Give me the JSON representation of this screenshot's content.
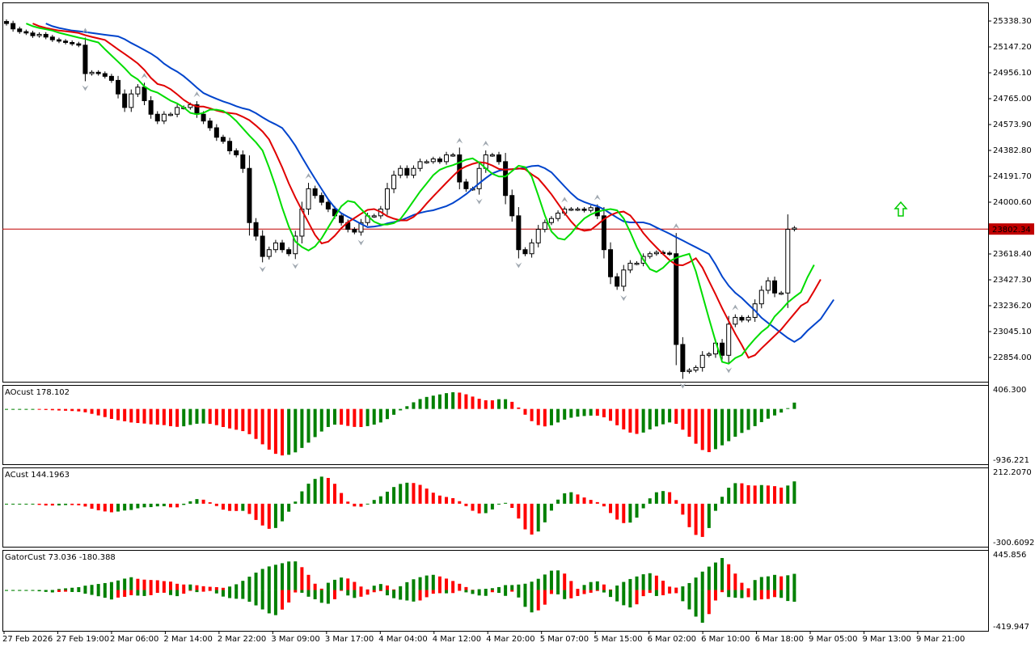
{
  "colors": {
    "bull_bar": "#008000",
    "bear_bar": "#ff0000",
    "ma_slow": "#0044cc",
    "ma_mid": "#e00000",
    "ma_fast": "#00dd00",
    "price_line": "#c00000",
    "arrow_up": "#00cc00",
    "fractal": "#a0a8b0"
  },
  "main_panel": {
    "price_axis_ticks": [
      "25338.30",
      "25147.20",
      "24956.10",
      "24765.00",
      "24573.90",
      "24382.80",
      "24191.70",
      "24000.60",
      "23618.40",
      "23427.30",
      "23236.20",
      "23045.10",
      "22854.00"
    ],
    "current_price": "23802.34",
    "ylim": [
      22700,
      25420
    ]
  },
  "ao_panel": {
    "label": "AOcust 178.102",
    "max_label": "406.300",
    "min_label": "-936.221"
  },
  "ac_panel": {
    "label": "ACust 144.1963",
    "max_label": "212.2070",
    "min_label": "-300.6092"
  },
  "gator_panel": {
    "label": "GatorCust 73.036 -180.388",
    "max_label": "445.856",
    "min_label": "-419.947"
  },
  "time_axis": [
    "27 Feb 2026",
    "27 Feb 19:00",
    "2 Mar 06:00",
    "2 Mar 14:00",
    "2 Mar 22:00",
    "3 Mar 09:00",
    "3 Mar 17:00",
    "4 Mar 04:00",
    "4 Mar 12:00",
    "4 Mar 20:00",
    "5 Mar 07:00",
    "5 Mar 15:00",
    "6 Mar 02:00",
    "6 Mar 10:00",
    "6 Mar 18:00",
    "9 Mar 05:00",
    "9 Mar 13:00",
    "9 Mar 21:00"
  ],
  "chart_data": {
    "type": "candlestick",
    "instrument_price_scale": "H1",
    "closes": [
      25320,
      25280,
      25260,
      25250,
      25230,
      25240,
      25220,
      25200,
      25190,
      25180,
      25170,
      25160,
      24950,
      24960,
      24950,
      24930,
      24900,
      24800,
      24700,
      24800,
      24850,
      24750,
      24650,
      24600,
      24650,
      24650,
      24700,
      24700,
      24720,
      24650,
      24600,
      24550,
      24480,
      24450,
      24380,
      24350,
      24250,
      23850,
      23750,
      23600,
      23650,
      23700,
      23650,
      23620,
      23750,
      23950,
      24100,
      24050,
      24000,
      23950,
      23900,
      23850,
      23800,
      23780,
      23850,
      23900,
      23900,
      23950,
      24100,
      24200,
      24250,
      24200,
      24250,
      24300,
      24300,
      24320,
      24300,
      24350,
      24350,
      24150,
      24100,
      24100,
      24250,
      24350,
      24350,
      24300,
      24050,
      23900,
      23650,
      23620,
      23700,
      23800,
      23850,
      23880,
      23920,
      23950,
      23950,
      23950,
      23940,
      23960,
      23900,
      23650,
      23450,
      23380,
      23500,
      23550,
      23550,
      23600,
      23620,
      23630,
      23625,
      23620,
      22950,
      22750,
      22760,
      22780,
      22870,
      22880,
      22960,
      22870,
      23100,
      23150,
      23130,
      23150,
      23250,
      23350,
      23420,
      23330,
      23330,
      23800,
      23810
    ]
  }
}
